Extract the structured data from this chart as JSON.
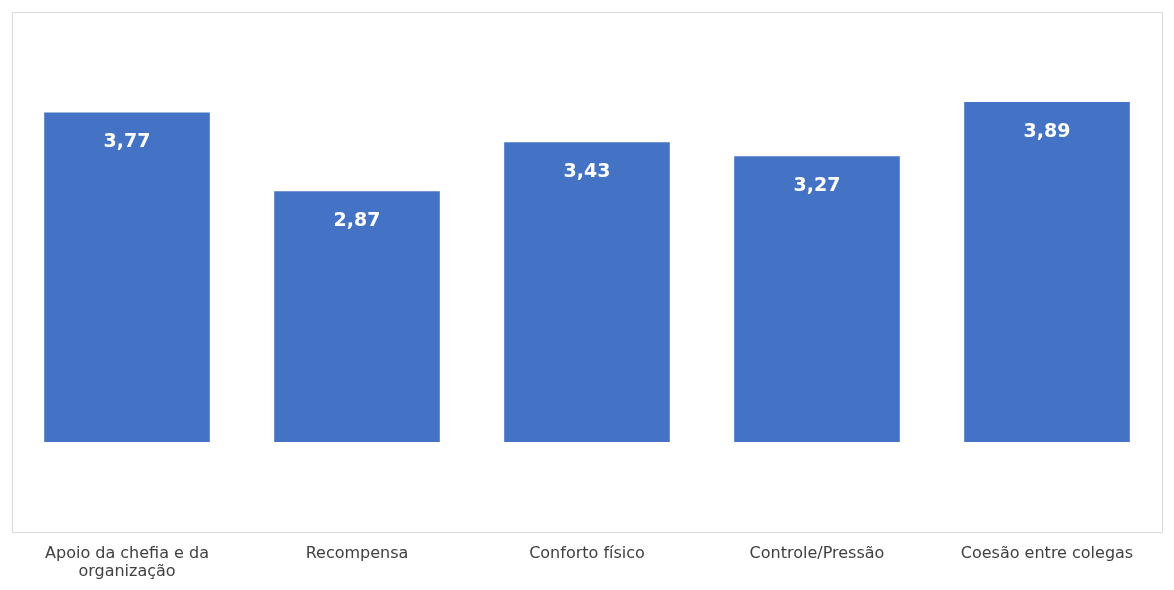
{
  "chart_data": {
    "type": "bar",
    "categories": [
      "Apoio da chefia e da organização",
      "Recompensa",
      "Conforto físico",
      "Controle/Pressão",
      "Coesão entre colegas"
    ],
    "values": [
      3.77,
      2.87,
      3.43,
      3.27,
      3.89
    ],
    "color": "#4472c4",
    "value_labels": [
      "3,77",
      "2,87",
      "3,43",
      "3,27",
      "3,89"
    ]
  }
}
